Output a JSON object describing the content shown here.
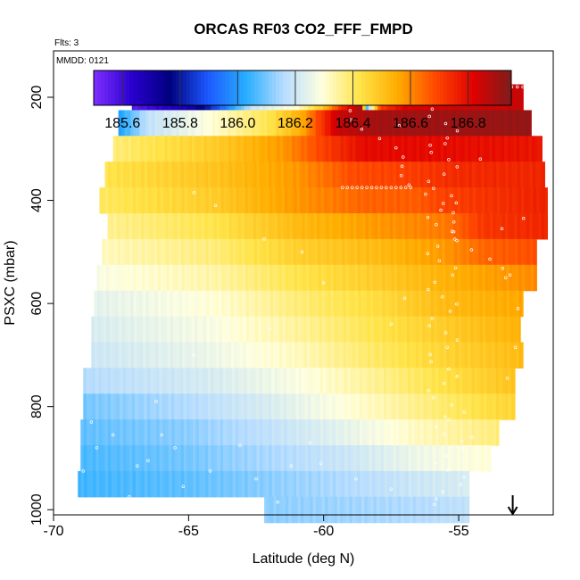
{
  "chart_data": {
    "type": "heatmap",
    "title": "ORCAS RF03 CO2_FFF_FMPD",
    "flights_label": "Flts: 3",
    "date_label": "MMDD: 0121",
    "xlabel": "Latitude (deg N)",
    "ylabel": "PSXC (mbar)",
    "xlim": [
      -70,
      -51.5
    ],
    "ylim": [
      1010,
      110
    ],
    "xticks": [
      -70,
      -65,
      -60,
      -55
    ],
    "yticks": [
      200,
      400,
      600,
      800,
      1000
    ],
    "colorbar": {
      "min": 185.5,
      "max": 186.95,
      "ticks": [
        185.6,
        185.8,
        186.0,
        186.2,
        186.4,
        186.6,
        186.8
      ],
      "palette": [
        "#7f2fff",
        "#2a00cf",
        "#00007e",
        "#1c58ff",
        "#27adff",
        "#b6dcff",
        "#ffffe0",
        "#ffe44a",
        "#ffac00",
        "#ff4800",
        "#e00000",
        "#7e1c1c"
      ]
    },
    "bands": [
      {
        "p": 200,
        "x0": -67.1,
        "x1": -52.6
      },
      {
        "p": 250,
        "x0": -67.6,
        "x1": -52.3
      },
      {
        "p": 300,
        "x0": -67.8,
        "x1": -51.9
      },
      {
        "p": 350,
        "x0": -68.1,
        "x1": -51.8
      },
      {
        "p": 400,
        "x0": -68.3,
        "x1": -51.7
      },
      {
        "p": 450,
        "x0": -68.0,
        "x1": -51.7
      },
      {
        "p": 500,
        "x0": -68.2,
        "x1": -52.1
      },
      {
        "p": 550,
        "x0": -68.4,
        "x1": -52.1
      },
      {
        "p": 600,
        "x0": -68.5,
        "x1": -52.6
      },
      {
        "p": 650,
        "x0": -68.6,
        "x1": -52.7
      },
      {
        "p": 700,
        "x0": -68.6,
        "x1": -52.6
      },
      {
        "p": 750,
        "x0": -68.9,
        "x1": -52.9
      },
      {
        "p": 800,
        "x0": -68.9,
        "x1": -52.9
      },
      {
        "p": 850,
        "x0": -69.0,
        "x1": -53.5
      },
      {
        "p": 900,
        "x0": -69.0,
        "x1": -53.8
      },
      {
        "p": 950,
        "x0": -69.1,
        "x1": -54.6
      },
      {
        "p": 1000,
        "x0": -62.2,
        "x1": -54.6
      }
    ],
    "marker": {
      "x": -53.0,
      "label": "arrow"
    }
  }
}
